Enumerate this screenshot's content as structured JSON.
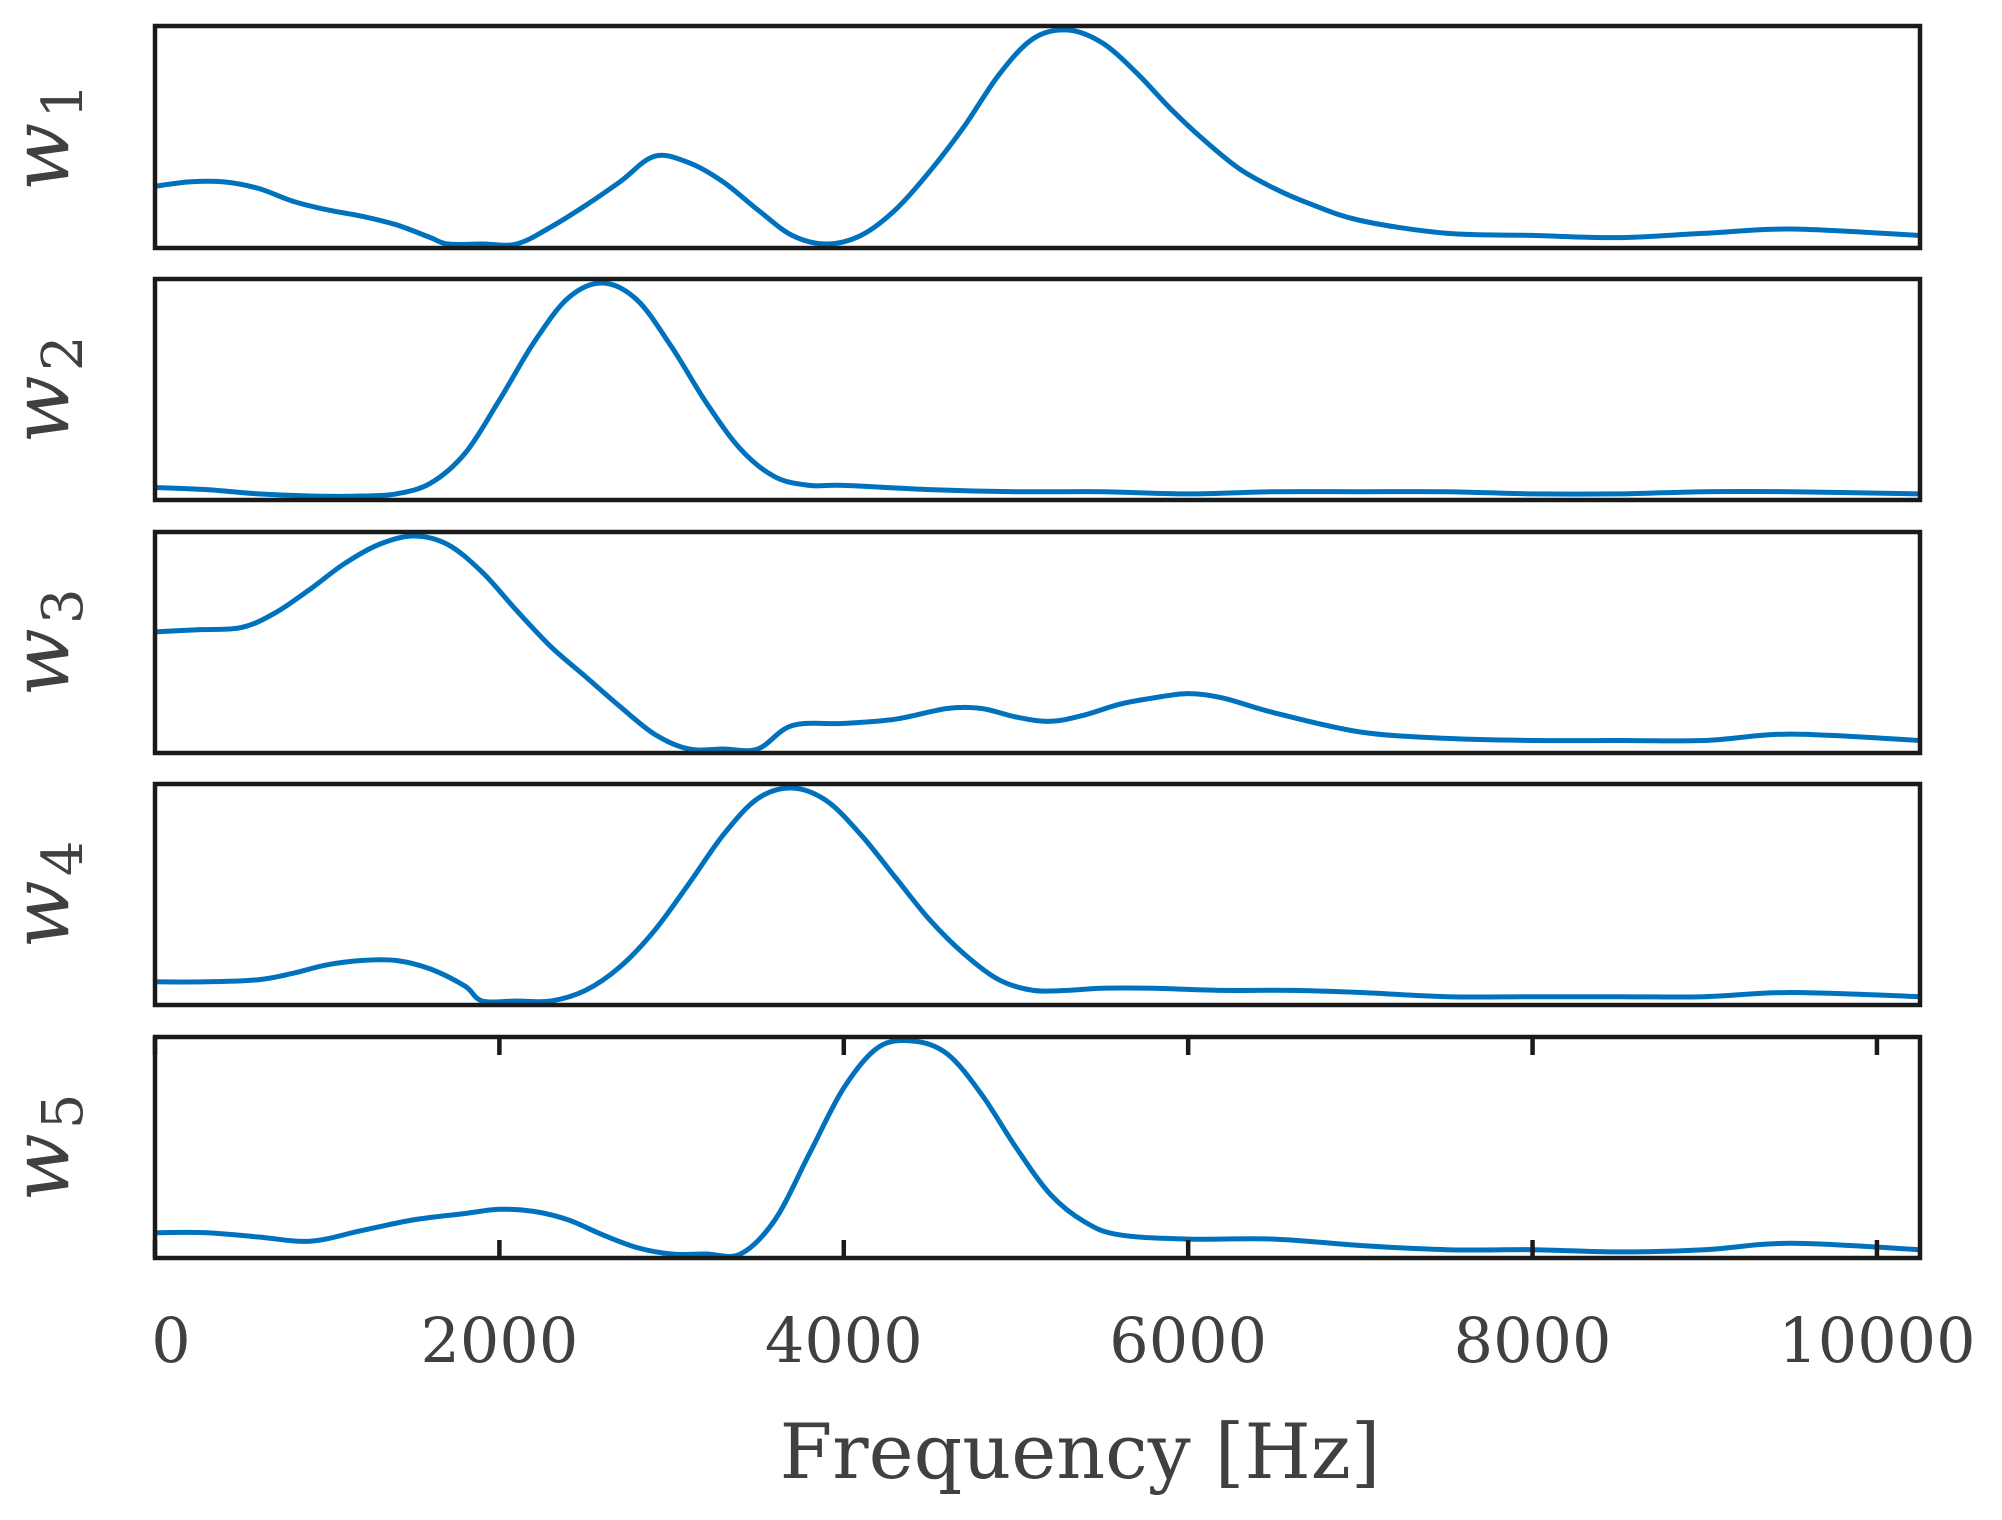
{
  "chart_data": {
    "type": "line",
    "xlabel": "Frequency [Hz]",
    "xlim": [
      0,
      10250
    ],
    "ylim": [
      0,
      1
    ],
    "x_ticks": [
      0,
      2000,
      4000,
      6000,
      8000,
      10000
    ],
    "x_tick_labels": [
      "0",
      "2000",
      "4000",
      "6000",
      "8000",
      "10000"
    ],
    "grid": false,
    "line_color": "#0072BD",
    "series": [
      {
        "name": "w1",
        "ylabel_base": "w",
        "ylabel_sub": "1",
        "x": [
          0,
          200,
          400,
          600,
          800,
          1000,
          1200,
          1400,
          1600,
          1700,
          1900,
          2100,
          2300,
          2500,
          2700,
          2900,
          3100,
          3300,
          3500,
          3700,
          3900,
          4100,
          4300,
          4500,
          4700,
          4900,
          5100,
          5300,
          5500,
          5700,
          5900,
          6100,
          6300,
          6500,
          6700,
          7000,
          7500,
          8000,
          8500,
          9000,
          9500,
          10250
        ],
        "values": [
          0.27,
          0.29,
          0.29,
          0.26,
          0.2,
          0.16,
          0.13,
          0.09,
          0.03,
          0.0,
          0.0,
          0.0,
          0.08,
          0.18,
          0.29,
          0.41,
          0.38,
          0.29,
          0.16,
          0.04,
          0.0,
          0.04,
          0.16,
          0.34,
          0.55,
          0.79,
          0.96,
          1.0,
          0.94,
          0.8,
          0.63,
          0.48,
          0.35,
          0.26,
          0.19,
          0.11,
          0.05,
          0.04,
          0.03,
          0.05,
          0.07,
          0.04
        ]
      },
      {
        "name": "w2",
        "ylabel_base": "w",
        "ylabel_sub": "2",
        "x": [
          0,
          300,
          600,
          900,
          1200,
          1400,
          1600,
          1800,
          2000,
          2200,
          2400,
          2600,
          2800,
          3000,
          3200,
          3400,
          3600,
          3800,
          4000,
          4500,
          5000,
          5500,
          6000,
          6500,
          7000,
          7500,
          8000,
          8500,
          9000,
          9500,
          10250
        ],
        "values": [
          0.04,
          0.03,
          0.01,
          0.0,
          0.0,
          0.01,
          0.06,
          0.2,
          0.45,
          0.72,
          0.93,
          1.0,
          0.92,
          0.7,
          0.44,
          0.22,
          0.09,
          0.05,
          0.05,
          0.03,
          0.02,
          0.02,
          0.01,
          0.02,
          0.02,
          0.02,
          0.01,
          0.01,
          0.02,
          0.02,
          0.01
        ]
      },
      {
        "name": "w3",
        "ylabel_base": "w",
        "ylabel_sub": "3",
        "x": [
          0,
          250,
          500,
          700,
          900,
          1100,
          1300,
          1500,
          1700,
          1900,
          2100,
          2300,
          2500,
          2700,
          2900,
          3100,
          3300,
          3500,
          3700,
          4000,
          4300,
          4600,
          4800,
          5000,
          5200,
          5400,
          5600,
          5800,
          6000,
          6200,
          6500,
          7000,
          7500,
          8000,
          8500,
          9000,
          9500,
          10250
        ],
        "values": [
          0.55,
          0.56,
          0.57,
          0.64,
          0.75,
          0.87,
          0.96,
          1.0,
          0.96,
          0.83,
          0.65,
          0.48,
          0.34,
          0.2,
          0.07,
          0.0,
          0.0,
          0.0,
          0.11,
          0.12,
          0.14,
          0.19,
          0.19,
          0.15,
          0.13,
          0.16,
          0.21,
          0.24,
          0.26,
          0.24,
          0.17,
          0.08,
          0.05,
          0.04,
          0.04,
          0.04,
          0.07,
          0.04
        ]
      },
      {
        "name": "w4",
        "ylabel_base": "w",
        "ylabel_sub": "4",
        "x": [
          0,
          300,
          600,
          800,
          1000,
          1200,
          1400,
          1600,
          1800,
          1900,
          2100,
          2300,
          2500,
          2700,
          2900,
          3100,
          3300,
          3500,
          3700,
          3900,
          4100,
          4300,
          4500,
          4700,
          4900,
          5100,
          5300,
          5500,
          5800,
          6200,
          6600,
          7000,
          7500,
          8000,
          8500,
          9000,
          9500,
          10250
        ],
        "values": [
          0.09,
          0.09,
          0.1,
          0.13,
          0.17,
          0.19,
          0.19,
          0.15,
          0.07,
          0.0,
          0.0,
          0.0,
          0.05,
          0.16,
          0.33,
          0.55,
          0.78,
          0.95,
          1.0,
          0.94,
          0.78,
          0.58,
          0.38,
          0.22,
          0.1,
          0.05,
          0.05,
          0.06,
          0.06,
          0.05,
          0.05,
          0.04,
          0.02,
          0.02,
          0.02,
          0.02,
          0.04,
          0.02
        ]
      },
      {
        "name": "w5",
        "ylabel_base": "w",
        "ylabel_sub": "5",
        "x": [
          0,
          300,
          600,
          900,
          1200,
          1500,
          1800,
          2000,
          2200,
          2400,
          2600,
          2800,
          3000,
          3200,
          3400,
          3600,
          3800,
          4000,
          4200,
          4400,
          4600,
          4800,
          5000,
          5200,
          5400,
          5600,
          6000,
          6500,
          7000,
          7500,
          8000,
          8500,
          9000,
          9500,
          10250
        ],
        "values": [
          0.1,
          0.1,
          0.08,
          0.06,
          0.11,
          0.16,
          0.19,
          0.21,
          0.2,
          0.16,
          0.09,
          0.03,
          0.0,
          0.0,
          0.0,
          0.16,
          0.47,
          0.78,
          0.97,
          1.0,
          0.94,
          0.75,
          0.5,
          0.28,
          0.15,
          0.09,
          0.07,
          0.07,
          0.04,
          0.02,
          0.02,
          0.01,
          0.02,
          0.05,
          0.02
        ]
      }
    ]
  }
}
